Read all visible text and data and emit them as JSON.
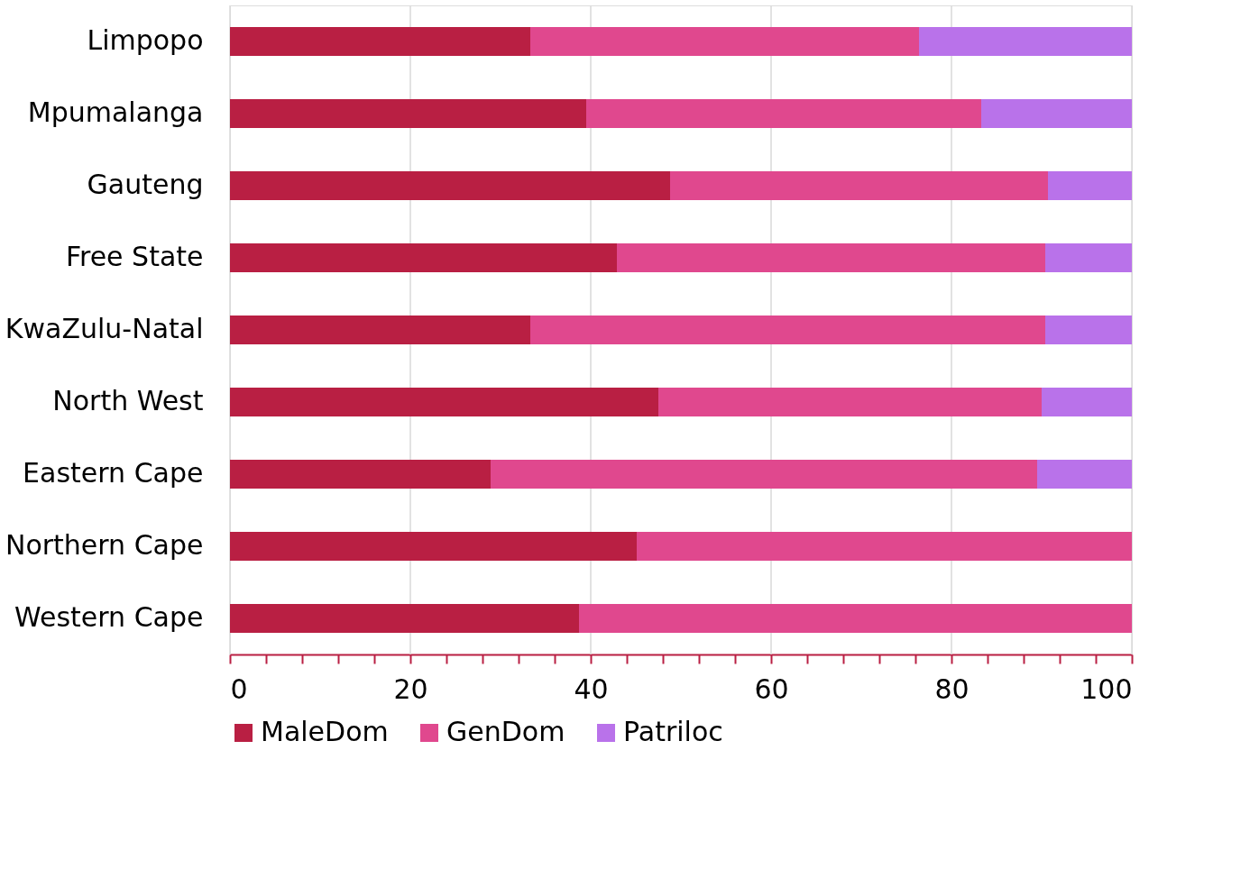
{
  "chart_data": {
    "type": "bar",
    "orientation": "horizontal",
    "stacked": true,
    "categories": [
      "Limpopo",
      "Mpumalanga",
      "Gauteng",
      "Free State",
      "KwaZulu-Natal",
      "North West",
      "Eastern Cape",
      "Northern Cape",
      "Western Cape"
    ],
    "series": [
      {
        "name": "MaleDom",
        "color": "#b91f43",
        "values": [
          33.3,
          39.5,
          48.8,
          42.9,
          33.3,
          47.5,
          28.9,
          45.1,
          38.7
        ]
      },
      {
        "name": "GenDom",
        "color": "#e0488e",
        "values": [
          43.1,
          43.8,
          41.9,
          47.5,
          57.1,
          42.5,
          60.6,
          54.9,
          61.3
        ]
      },
      {
        "name": "Patriloc",
        "color": "#b972ea",
        "values": [
          23.6,
          16.7,
          9.3,
          9.6,
          9.6,
          10.0,
          10.5,
          0,
          0
        ]
      }
    ],
    "xlim": [
      0,
      100
    ],
    "xticks": [
      0,
      {
        "value": 4,
        "label": null
      },
      {
        "value": 8,
        "label": null
      },
      {
        "value": 12,
        "label": null
      },
      {
        "value": 16,
        "label": null
      },
      20,
      {
        "value": 24,
        "label": null
      },
      {
        "value": 28,
        "label": null
      },
      {
        "value": 32,
        "label": null
      },
      {
        "value": 36,
        "label": null
      },
      40,
      {
        "value": 44,
        "label": null
      },
      {
        "value": 48,
        "label": null
      },
      {
        "value": 52,
        "label": null
      },
      {
        "value": 56,
        "label": null
      },
      60,
      {
        "value": 64,
        "label": null
      },
      {
        "value": 68,
        "label": null
      },
      {
        "value": 72,
        "label": null
      },
      {
        "value": 76,
        "label": null
      },
      80,
      {
        "value": 84,
        "label": null
      },
      {
        "value": 88,
        "label": null
      },
      {
        "value": 92,
        "label": null
      },
      {
        "value": 96,
        "label": null
      },
      100
    ],
    "grid": "x",
    "legend": "bottom"
  }
}
